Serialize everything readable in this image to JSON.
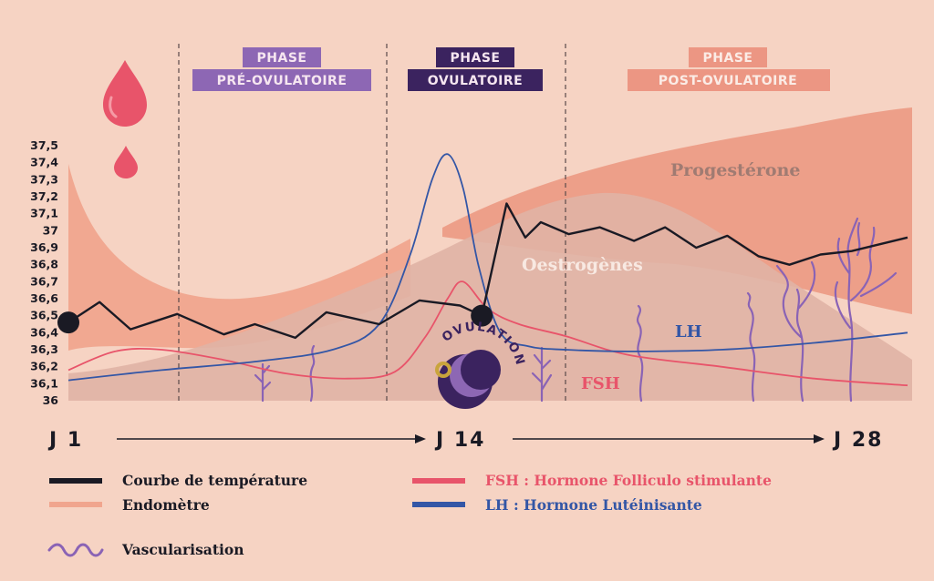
{
  "phases": [
    {
      "line1": "PHASE",
      "line2": "PRÉ-OVULATOIRE",
      "color": "#8d67b4"
    },
    {
      "line1": "PHASE",
      "line2": "OVULATOIRE",
      "color": "#3b235f"
    },
    {
      "line1": "PHASE",
      "line2": "POST-OVULATOIRE",
      "color": "#ec9683"
    }
  ],
  "area_labels": {
    "progesterone": "Progestérone",
    "oestrogenes": "Oestrogènes"
  },
  "curve_labels": {
    "lh": "LH",
    "fsh": "FSH"
  },
  "ovulation_label": "OVULATION",
  "days": {
    "start": "J 1",
    "mid": "J 14",
    "end": "J 28"
  },
  "legend": {
    "temperature": "Courbe de température",
    "endometre": "Endomètre",
    "vascularisation": "Vascularisation",
    "fsh": "FSH : Hormone Folliculo stimulante",
    "lh": "LH : Hormone Lutéinisante"
  },
  "colors": {
    "background": "#f6d3c3",
    "temperature": "#1a1a24",
    "endometre": "#f0a58e",
    "fsh": "#e8546a",
    "lh": "#3356a6",
    "vascularisation": "#8a63b5",
    "progesterone": "#ec9c86",
    "oestrogenes": "#e0b2a5",
    "blood": "#e8546a"
  },
  "chart_data": {
    "type": "line",
    "ylabel": "",
    "y_ticks": [
      "37,5",
      "37,4",
      "37,3",
      "37,2",
      "37,1",
      "37",
      "36,9",
      "36,8",
      "36,7",
      "36,6",
      "36,5",
      "36,4",
      "36,3",
      "36,2",
      "36,1",
      "36"
    ],
    "ylim": [
      36,
      37.5
    ],
    "xlim": [
      1,
      28
    ],
    "x_labels": [
      "J 1",
      "J 14",
      "J 28"
    ],
    "series": [
      {
        "name": "Courbe de température",
        "x": [
          1,
          2,
          3,
          4.5,
          6,
          7,
          8.3,
          9.3,
          11,
          12.3,
          13.6,
          14.3,
          15.1,
          15.7,
          16.2,
          17.1,
          18.1,
          19.2,
          20.2,
          21.2,
          22.2,
          23.2,
          24.2,
          25.2,
          26.2,
          28
        ],
        "y": [
          36.46,
          36.58,
          36.42,
          36.51,
          36.39,
          36.45,
          36.37,
          36.52,
          36.45,
          36.59,
          36.56,
          36.5,
          37.16,
          36.96,
          37.05,
          36.98,
          37.02,
          36.94,
          37.02,
          36.9,
          36.97,
          36.85,
          36.8,
          36.86,
          36.88,
          36.96
        ]
      },
      {
        "name": "FSH",
        "x": [
          1,
          2.5,
          4,
          6,
          8,
          10,
          11.5,
          12.5,
          13.2,
          13.7,
          14.5,
          15.5,
          17,
          19,
          22,
          25,
          28
        ],
        "y": [
          36.18,
          36.29,
          36.3,
          36.24,
          36.16,
          36.13,
          36.17,
          36.38,
          36.6,
          36.7,
          36.54,
          36.45,
          36.38,
          36.27,
          36.2,
          36.13,
          36.09
        ]
      },
      {
        "name": "LH",
        "x": [
          1,
          4,
          7,
          9.5,
          11,
          12,
          12.7,
          13.2,
          13.7,
          14.2,
          14.9,
          15.8,
          17,
          19,
          22,
          25,
          28
        ],
        "y": [
          36.12,
          36.18,
          36.23,
          36.3,
          36.45,
          36.86,
          37.3,
          37.45,
          37.25,
          36.79,
          36.4,
          36.32,
          36.3,
          36.29,
          36.3,
          36.34,
          36.4
        ]
      }
    ],
    "annotations": [
      "Progestérone",
      "Oestrogènes",
      "OVULATION"
    ]
  }
}
